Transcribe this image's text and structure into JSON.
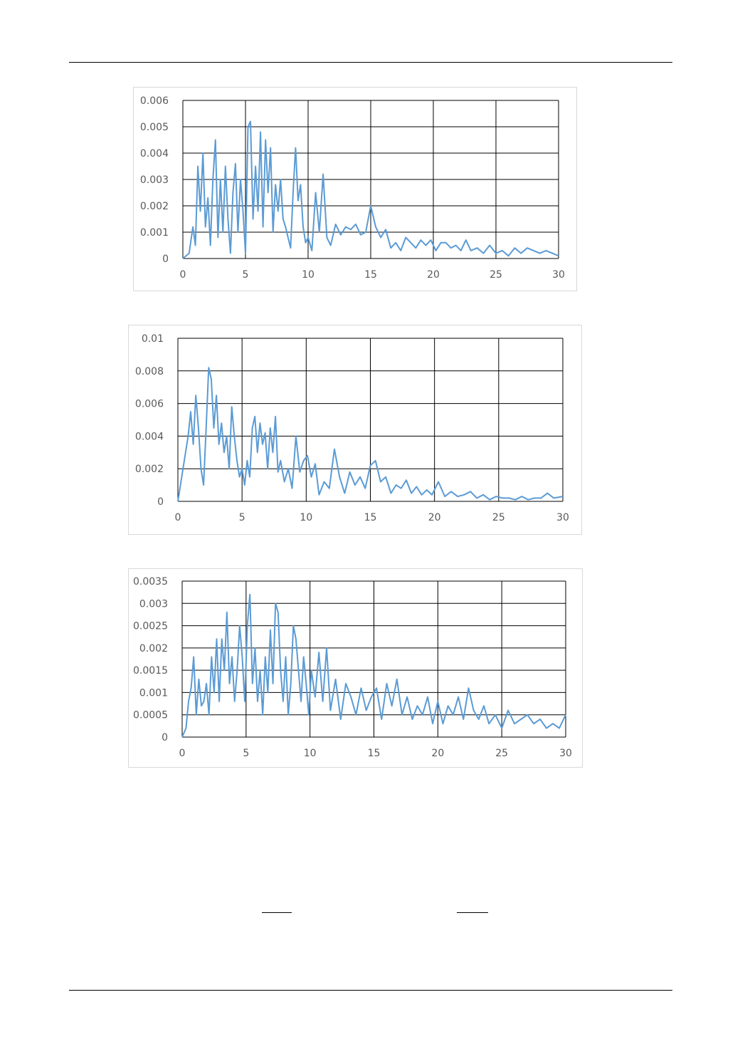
{
  "chart_data": [
    {
      "type": "line",
      "xlim": [
        0,
        30
      ],
      "ylim": [
        0,
        0.006
      ],
      "x_ticks": [
        "0",
        "5",
        "10",
        "15",
        "20",
        "25",
        "30"
      ],
      "y_ticks": [
        "0",
        "0.001",
        "0.002",
        "0.003",
        "0.004",
        "0.005",
        "0.006"
      ],
      "grid": true,
      "legend": "none",
      "line_color": "#5b9bd5",
      "series": [
        {
          "x": [
            0,
            0.5,
            0.8,
            1.0,
            1.2,
            1.4,
            1.6,
            1.8,
            2.0,
            2.2,
            2.4,
            2.6,
            2.8,
            3.0,
            3.2,
            3.4,
            3.6,
            3.8,
            4.0,
            4.2,
            4.4,
            4.6,
            4.8,
            5.0,
            5.2,
            5.4,
            5.6,
            5.8,
            6.0,
            6.2,
            6.4,
            6.6,
            6.8,
            7.0,
            7.2,
            7.4,
            7.6,
            7.8,
            8.0,
            8.2,
            8.4,
            8.6,
            8.8,
            9.0,
            9.2,
            9.4,
            9.6,
            9.8,
            10.0,
            10.3,
            10.6,
            10.9,
            11.2,
            11.5,
            11.8,
            12.2,
            12.6,
            13.0,
            13.4,
            13.8,
            14.2,
            14.6,
            15.0,
            15.4,
            15.8,
            16.2,
            16.6,
            17.0,
            17.4,
            17.8,
            18.2,
            18.6,
            19.0,
            19.4,
            19.8,
            20.2,
            20.6,
            21.0,
            21.4,
            21.8,
            22.2,
            22.6,
            23.0,
            23.5,
            24.0,
            24.5,
            25.0,
            25.5,
            26.0,
            26.5,
            27.0,
            27.5,
            28.0,
            28.5,
            29.0,
            29.5,
            30.0
          ],
          "y": [
            0,
            0.0002,
            0.0012,
            0.0005,
            0.0035,
            0.0018,
            0.004,
            0.0012,
            0.0023,
            0.0005,
            0.003,
            0.0045,
            0.0008,
            0.003,
            0.001,
            0.0035,
            0.0015,
            0.0002,
            0.0025,
            0.0036,
            0.001,
            0.003,
            0.0018,
            0.0002,
            0.005,
            0.0052,
            0.0015,
            0.0035,
            0.0018,
            0.0048,
            0.0012,
            0.0045,
            0.0025,
            0.0042,
            0.001,
            0.0028,
            0.0018,
            0.003,
            0.0015,
            0.0012,
            0.0008,
            0.0004,
            0.0025,
            0.0042,
            0.0022,
            0.0028,
            0.0012,
            0.0006,
            0.0008,
            0.0003,
            0.0025,
            0.001,
            0.0032,
            0.0008,
            0.0005,
            0.0013,
            0.0009,
            0.0012,
            0.0011,
            0.0013,
            0.0009,
            0.001,
            0.002,
            0.0012,
            0.0008,
            0.0011,
            0.0004,
            0.0006,
            0.0003,
            0.0008,
            0.0006,
            0.0004,
            0.0007,
            0.0005,
            0.0007,
            0.0003,
            0.0006,
            0.0006,
            0.0004,
            0.0005,
            0.0003,
            0.0007,
            0.0003,
            0.0004,
            0.0002,
            0.0005,
            0.0002,
            0.0003,
            0.0001,
            0.0004,
            0.0002,
            0.0004,
            0.0003,
            0.0002,
            0.0003,
            0.0002,
            0.0001
          ]
        }
      ]
    },
    {
      "type": "line",
      "xlim": [
        0,
        30
      ],
      "ylim": [
        0,
        0.01
      ],
      "x_ticks": [
        "0",
        "5",
        "10",
        "15",
        "20",
        "25",
        "30"
      ],
      "y_ticks": [
        "0",
        "0.002",
        "0.004",
        "0.006",
        "0.008",
        "0.01"
      ],
      "grid": true,
      "legend": "none",
      "line_color": "#5b9bd5",
      "series": [
        {
          "x": [
            0,
            0.3,
            0.6,
            0.8,
            1.0,
            1.2,
            1.4,
            1.6,
            1.8,
            2.0,
            2.2,
            2.4,
            2.6,
            2.8,
            3.0,
            3.2,
            3.4,
            3.6,
            3.8,
            4.0,
            4.2,
            4.4,
            4.6,
            4.8,
            5.0,
            5.2,
            5.4,
            5.6,
            5.8,
            6.0,
            6.2,
            6.4,
            6.6,
            6.8,
            7.0,
            7.2,
            7.4,
            7.6,
            7.8,
            8.0,
            8.3,
            8.6,
            8.9,
            9.2,
            9.5,
            9.8,
            10.1,
            10.4,
            10.7,
            11.0,
            11.4,
            11.8,
            12.2,
            12.6,
            13.0,
            13.4,
            13.8,
            14.2,
            14.6,
            15.0,
            15.4,
            15.8,
            16.2,
            16.6,
            17.0,
            17.4,
            17.8,
            18.2,
            18.6,
            19.0,
            19.4,
            19.8,
            20.3,
            20.8,
            21.3,
            21.8,
            22.3,
            22.8,
            23.3,
            23.8,
            24.3,
            24.8,
            25.3,
            25.8,
            26.3,
            26.8,
            27.3,
            27.8,
            28.3,
            28.8,
            29.3,
            30.0
          ],
          "y": [
            0,
            0.0015,
            0.003,
            0.004,
            0.0055,
            0.0035,
            0.0065,
            0.0045,
            0.002,
            0.001,
            0.0045,
            0.0082,
            0.0075,
            0.0045,
            0.0065,
            0.0035,
            0.0048,
            0.003,
            0.004,
            0.002,
            0.0058,
            0.004,
            0.0025,
            0.0015,
            0.002,
            0.001,
            0.0025,
            0.0015,
            0.0045,
            0.0052,
            0.003,
            0.0048,
            0.0035,
            0.0042,
            0.002,
            0.0045,
            0.003,
            0.0052,
            0.0018,
            0.0025,
            0.0012,
            0.002,
            0.0008,
            0.004,
            0.0018,
            0.0025,
            0.0028,
            0.0015,
            0.0023,
            0.0004,
            0.0012,
            0.0008,
            0.0032,
            0.0015,
            0.0005,
            0.0018,
            0.001,
            0.0015,
            0.0008,
            0.0022,
            0.0025,
            0.0012,
            0.0015,
            0.0005,
            0.001,
            0.0008,
            0.0013,
            0.0005,
            0.0009,
            0.0004,
            0.0007,
            0.0004,
            0.0012,
            0.0003,
            0.0006,
            0.0003,
            0.0004,
            0.0006,
            0.0002,
            0.0004,
            0.0001,
            0.0003,
            0.0002,
            0.0002,
            0.0001,
            0.0003,
            0.0001,
            0.0002,
            0.0002,
            0.0005,
            0.0002,
            0.0003
          ]
        }
      ]
    },
    {
      "type": "line",
      "xlim": [
        0,
        30
      ],
      "ylim": [
        0,
        0.0035
      ],
      "x_ticks": [
        "0",
        "5",
        "10",
        "15",
        "20",
        "25",
        "30"
      ],
      "y_ticks": [
        "0",
        "0.0005",
        "0.001",
        "0.0015",
        "0.002",
        "0.0025",
        "0.003",
        "0.0035"
      ],
      "grid": true,
      "legend": "none",
      "line_color": "#5b9bd5",
      "series": [
        {
          "x": [
            0,
            0.3,
            0.5,
            0.7,
            0.9,
            1.1,
            1.3,
            1.5,
            1.7,
            1.9,
            2.1,
            2.3,
            2.5,
            2.7,
            2.9,
            3.1,
            3.3,
            3.5,
            3.7,
            3.9,
            4.1,
            4.3,
            4.5,
            4.7,
            4.9,
            5.1,
            5.3,
            5.5,
            5.7,
            5.9,
            6.1,
            6.3,
            6.5,
            6.7,
            6.9,
            7.1,
            7.3,
            7.5,
            7.7,
            7.9,
            8.1,
            8.3,
            8.5,
            8.7,
            8.9,
            9.1,
            9.3,
            9.5,
            9.7,
            9.9,
            10.1,
            10.4,
            10.7,
            11.0,
            11.3,
            11.6,
            12.0,
            12.4,
            12.8,
            13.2,
            13.6,
            14.0,
            14.4,
            14.8,
            15.2,
            15.6,
            16.0,
            16.4,
            16.8,
            17.2,
            17.6,
            18.0,
            18.4,
            18.8,
            19.2,
            19.6,
            20.0,
            20.4,
            20.8,
            21.2,
            21.6,
            22.0,
            22.4,
            22.8,
            23.2,
            23.6,
            24.0,
            24.5,
            25.0,
            25.5,
            26.0,
            26.5,
            27.0,
            27.5,
            28.0,
            28.5,
            29.0,
            29.5,
            30.0
          ],
          "y": [
            0,
            0.0002,
            0.0008,
            0.0011,
            0.0018,
            0.0005,
            0.0013,
            0.0007,
            0.0008,
            0.0012,
            0.0005,
            0.0018,
            0.001,
            0.0022,
            0.0008,
            0.0022,
            0.0015,
            0.0028,
            0.0012,
            0.0018,
            0.0008,
            0.0015,
            0.0025,
            0.0018,
            0.0008,
            0.0025,
            0.0032,
            0.0012,
            0.002,
            0.0008,
            0.0015,
            0.0005,
            0.0018,
            0.001,
            0.0024,
            0.0012,
            0.003,
            0.0028,
            0.0015,
            0.0008,
            0.0018,
            0.0005,
            0.0012,
            0.0025,
            0.0022,
            0.0015,
            0.0008,
            0.0018,
            0.0012,
            0.0005,
            0.0015,
            0.0009,
            0.0019,
            0.0008,
            0.002,
            0.0006,
            0.0013,
            0.0004,
            0.0012,
            0.0009,
            0.0005,
            0.0011,
            0.0006,
            0.0009,
            0.0011,
            0.0004,
            0.0012,
            0.0007,
            0.0013,
            0.0005,
            0.0009,
            0.0004,
            0.0007,
            0.0005,
            0.0009,
            0.0003,
            0.0008,
            0.0003,
            0.0007,
            0.0005,
            0.0009,
            0.0004,
            0.0011,
            0.0006,
            0.0004,
            0.0007,
            0.0003,
            0.0005,
            0.0002,
            0.0006,
            0.0003,
            0.0004,
            0.0005,
            0.0003,
            0.0004,
            0.0002,
            0.0003,
            0.0002,
            0.0005
          ]
        }
      ]
    }
  ]
}
